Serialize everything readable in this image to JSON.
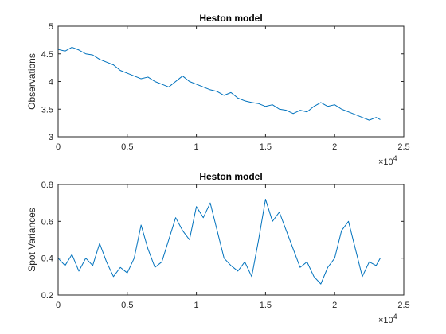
{
  "chart_data": [
    {
      "type": "line",
      "title": "Heston model",
      "xlabel": "",
      "ylabel": "Observations",
      "xlim": [
        0,
        25000
      ],
      "ylim": [
        3,
        5
      ],
      "xticks": [
        0,
        5000,
        10000,
        15000,
        20000,
        25000
      ],
      "xtick_labels": [
        "0",
        "0.5",
        "1",
        "1.5",
        "2",
        "2.5"
      ],
      "yticks": [
        3,
        3.5,
        4,
        4.5,
        5
      ],
      "ytick_labels": [
        "3",
        "3.5",
        "4",
        "4.5",
        "5"
      ],
      "x_exponent_label": "×10",
      "x_exponent_power": "4",
      "grid": false,
      "color": "#0072BD",
      "series": [
        {
          "x": [
            0,
            500,
            1000,
            1500,
            2000,
            2500,
            3000,
            3500,
            4000,
            4500,
            5000,
            5500,
            6000,
            6500,
            7000,
            7500,
            8000,
            8500,
            9000,
            9500,
            10000,
            10500,
            11000,
            11500,
            12000,
            12500,
            13000,
            13500,
            14000,
            14500,
            15000,
            15500,
            16000,
            16500,
            17000,
            17500,
            18000,
            18500,
            19000,
            19500,
            20000,
            20500,
            21000,
            21500,
            22000,
            22500,
            23000,
            23300
          ],
          "values": [
            4.58,
            4.55,
            4.62,
            4.57,
            4.5,
            4.48,
            4.4,
            4.35,
            4.3,
            4.2,
            4.15,
            4.1,
            4.05,
            4.08,
            4.0,
            3.95,
            3.9,
            4.0,
            4.1,
            4.0,
            3.95,
            3.9,
            3.85,
            3.82,
            3.75,
            3.8,
            3.7,
            3.65,
            3.62,
            3.6,
            3.55,
            3.58,
            3.5,
            3.48,
            3.42,
            3.48,
            3.45,
            3.55,
            3.62,
            3.55,
            3.58,
            3.5,
            3.45,
            3.4,
            3.35,
            3.3,
            3.35,
            3.31
          ]
        }
      ]
    },
    {
      "type": "line",
      "title": "Heston model",
      "xlabel": "",
      "ylabel": "Spot Variances",
      "xlim": [
        0,
        25000
      ],
      "ylim": [
        0.2,
        0.8
      ],
      "xticks": [
        0,
        5000,
        10000,
        15000,
        20000,
        25000
      ],
      "xtick_labels": [
        "0",
        "0.5",
        "1",
        "1.5",
        "2",
        "2.5"
      ],
      "yticks": [
        0.2,
        0.4,
        0.6,
        0.8
      ],
      "ytick_labels": [
        "0.2",
        "0.4",
        "0.6",
        "0.8"
      ],
      "x_exponent_label": "×10",
      "x_exponent_power": "4",
      "grid": false,
      "color": "#0072BD",
      "series": [
        {
          "x": [
            0,
            500,
            1000,
            1500,
            2000,
            2500,
            3000,
            3500,
            4000,
            4500,
            5000,
            5500,
            6000,
            6500,
            7000,
            7500,
            8000,
            8500,
            9000,
            9500,
            10000,
            10500,
            11000,
            11500,
            12000,
            12500,
            13000,
            13500,
            14000,
            14500,
            15000,
            15500,
            16000,
            16500,
            17000,
            17500,
            18000,
            18500,
            19000,
            19500,
            20000,
            20500,
            21000,
            21500,
            22000,
            22500,
            23000,
            23300
          ],
          "values": [
            0.4,
            0.36,
            0.42,
            0.33,
            0.4,
            0.36,
            0.48,
            0.38,
            0.3,
            0.35,
            0.32,
            0.4,
            0.58,
            0.45,
            0.35,
            0.38,
            0.5,
            0.62,
            0.55,
            0.5,
            0.68,
            0.62,
            0.7,
            0.55,
            0.4,
            0.36,
            0.33,
            0.38,
            0.3,
            0.5,
            0.72,
            0.6,
            0.65,
            0.55,
            0.45,
            0.35,
            0.38,
            0.3,
            0.26,
            0.35,
            0.4,
            0.55,
            0.6,
            0.45,
            0.3,
            0.38,
            0.36,
            0.4
          ]
        }
      ]
    }
  ]
}
